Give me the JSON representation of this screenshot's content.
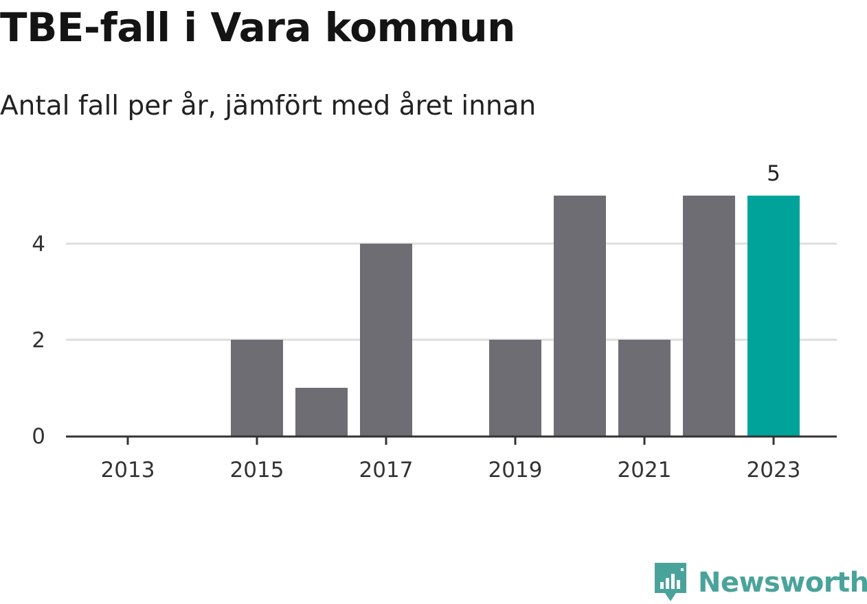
{
  "title": "TBE-fall i Vara kommun",
  "subtitle": "Antal fall per år, jämfört med året innan",
  "brand": {
    "name": "Newsworthy",
    "logo_icon": "bar-chart-speech-bubble-icon"
  },
  "colors": {
    "bar": "#6e6d73",
    "highlight": "#00a39a",
    "grid": "#dddddd",
    "axis": "#333333",
    "brand": "#4aa39a"
  },
  "chart_data": {
    "type": "bar",
    "categories": [
      "2013",
      "2014",
      "2015",
      "2016",
      "2017",
      "2018",
      "2019",
      "2020",
      "2021",
      "2022",
      "2023"
    ],
    "values": [
      0,
      0,
      2,
      1,
      4,
      0,
      2,
      5,
      2,
      5,
      5
    ],
    "x_tick_labels": [
      "2013",
      "2015",
      "2017",
      "2019",
      "2021",
      "2023"
    ],
    "y_ticks": [
      0,
      2,
      4
    ],
    "ylim": [
      0,
      5
    ],
    "highlight_category": "2023",
    "data_labels": [
      {
        "category": "2023",
        "text": "5"
      }
    ],
    "grid": true,
    "xlabel": "",
    "ylabel": ""
  }
}
